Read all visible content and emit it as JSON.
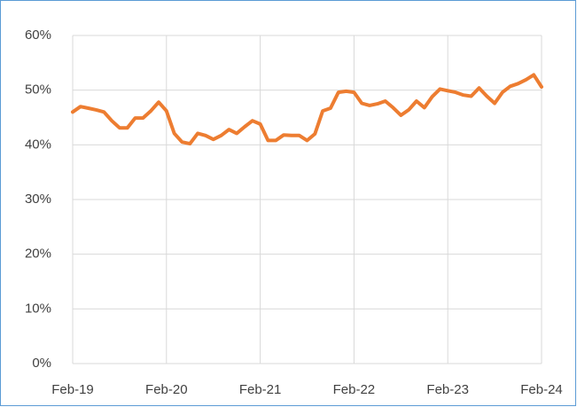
{
  "chart_data": {
    "type": "line",
    "categories": [
      "Feb-19",
      null,
      null,
      null,
      null,
      null,
      null,
      null,
      null,
      null,
      null,
      null,
      "Feb-20",
      null,
      null,
      null,
      null,
      null,
      null,
      null,
      null,
      null,
      null,
      null,
      "Feb-21",
      null,
      null,
      null,
      null,
      null,
      null,
      null,
      null,
      null,
      null,
      null,
      "Feb-22",
      null,
      null,
      null,
      null,
      null,
      null,
      null,
      null,
      null,
      null,
      null,
      "Feb-23",
      null,
      null,
      null,
      null,
      null,
      null,
      null,
      null,
      null,
      null,
      null,
      "Feb-24"
    ],
    "series": [
      {
        "color": "#ed7d31",
        "values": [
          46.0,
          47.0,
          46.7,
          46.4,
          46.0,
          44.4,
          43.1,
          43.1,
          44.9,
          44.9,
          46.2,
          47.8,
          46.2,
          42.1,
          40.5,
          40.2,
          42.1,
          41.7,
          41.0,
          41.7,
          42.8,
          42.1,
          43.3,
          44.4,
          43.8,
          40.8,
          40.8,
          41.8,
          41.7,
          41.7,
          40.8,
          42.0,
          46.2,
          46.7,
          49.6,
          49.8,
          49.6,
          47.6,
          47.2,
          47.5,
          48.0,
          46.8,
          45.4,
          46.4,
          48.0,
          46.8,
          48.8,
          50.2,
          49.9,
          49.6,
          49.1,
          48.9,
          50.4,
          48.9,
          47.6,
          49.6,
          50.7,
          51.2,
          51.9,
          52.8,
          50.6
        ]
      }
    ],
    "ylim": [
      0,
      60
    ],
    "yticks": [
      {
        "value": 0,
        "label": "0%"
      },
      {
        "value": 10,
        "label": "10%"
      },
      {
        "value": 20,
        "label": "20%"
      },
      {
        "value": 30,
        "label": "30%"
      },
      {
        "value": 40,
        "label": "40%"
      },
      {
        "value": 50,
        "label": "50%"
      },
      {
        "value": 60,
        "label": "60%"
      }
    ],
    "grid": true
  }
}
